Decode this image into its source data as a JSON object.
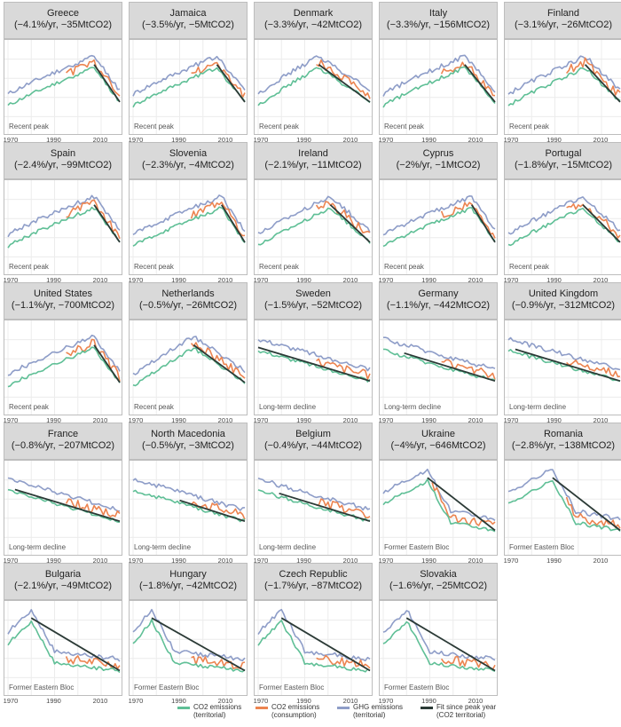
{
  "colors": {
    "co2_territorial": "#5fbf96",
    "co2_consumption": "#ec8450",
    "ghg_territorial": "#8e9dc8",
    "fit": "#2b3a36",
    "gridline": "#ececec",
    "strip_bg": "#d9d9d9"
  },
  "x_ticks": [
    "1970",
    "1990",
    "2010"
  ],
  "legend": [
    {
      "line1": "CO2 emissions",
      "line2": "(territorial)",
      "color": "#5fbf96"
    },
    {
      "line1": "CO2 emissions",
      "line2": "(consumption)",
      "color": "#ec8450"
    },
    {
      "line1": "GHG emissions",
      "line2": "(territorial)",
      "color": "#8e9dc8"
    },
    {
      "line1": "Fit since peak year",
      "line2": "(CO2 territorial)",
      "color": "#2b3a36"
    }
  ],
  "chart_data": {
    "type": "line",
    "xlim": [
      1970,
      2018
    ],
    "xticks": [
      1970,
      1990,
      2010
    ],
    "ylabel": "",
    "series_names": [
      "CO2 emissions (territorial)",
      "CO2 emissions (consumption)",
      "GHG emissions (territorial)",
      "Fit since peak year (CO2 territorial)"
    ],
    "panels": [
      {
        "country": "Greece",
        "subtitle": "(−4.1%/yr, −35MtCO2)",
        "category": "Recent peak",
        "shape": "peak",
        "peak_year": 2007,
        "cons_start": 1995
      },
      {
        "country": "Jamaica",
        "subtitle": "(−3.5%/yr, −5MtCO2)",
        "category": "Recent peak",
        "shape": "peak",
        "peak_year": 2006,
        "cons_start": 1995
      },
      {
        "country": "Denmark",
        "subtitle": "(−3.3%/yr, −42MtCO2)",
        "category": "Recent peak",
        "shape": "peak",
        "peak_year": 1996,
        "cons_start": 1995
      },
      {
        "country": "Italy",
        "subtitle": "(−3.3%/yr, −156MtCO2)",
        "category": "Recent peak",
        "shape": "peak",
        "peak_year": 2005,
        "cons_start": 1995
      },
      {
        "country": "Finland",
        "subtitle": "(−3.1%/yr, −26MtCO2)",
        "category": "Recent peak",
        "shape": "peak",
        "peak_year": 2003,
        "cons_start": 1995
      },
      {
        "country": "Spain",
        "subtitle": "(−2.4%/yr, −99MtCO2)",
        "category": "Recent peak",
        "shape": "peak",
        "peak_year": 2007,
        "cons_start": 1995
      },
      {
        "country": "Slovenia",
        "subtitle": "(−2.3%/yr, −4MtCO2)",
        "category": "Recent peak",
        "shape": "peak",
        "peak_year": 2008,
        "cons_start": 1995
      },
      {
        "country": "Ireland",
        "subtitle": "(−2.1%/yr, −11MtCO2)",
        "category": "Recent peak",
        "shape": "peak",
        "peak_year": 2001,
        "cons_start": 1995
      },
      {
        "country": "Cyprus",
        "subtitle": "(−2%/yr, −1MtCO2)",
        "category": "Recent peak",
        "shape": "peak",
        "peak_year": 2008,
        "cons_start": 1995
      },
      {
        "country": "Portugal",
        "subtitle": "(−1.8%/yr, −15MtCO2)",
        "category": "Recent peak",
        "shape": "peak",
        "peak_year": 2002,
        "cons_start": 1995
      },
      {
        "country": "United States",
        "subtitle": "(−1.1%/yr, −700MtCO2)",
        "category": "Recent peak",
        "shape": "peak",
        "peak_year": 2007,
        "cons_start": 1995
      },
      {
        "country": "Netherlands",
        "subtitle": "(−0.5%/yr, −26MtCO2)",
        "category": "Recent peak",
        "shape": "peak",
        "peak_year": 1996,
        "cons_start": 1995
      },
      {
        "country": "Sweden",
        "subtitle": "(−1.5%/yr, −52MtCO2)",
        "category": "Long-term decline",
        "shape": "decline",
        "peak_year": 1970,
        "cons_start": 1995
      },
      {
        "country": "Germany",
        "subtitle": "(−1.1%/yr, −442MtCO2)",
        "category": "Long-term decline",
        "shape": "decline",
        "peak_year": 1979,
        "cons_start": 1995
      },
      {
        "country": "United Kingdom",
        "subtitle": "(−0.9%/yr, −312MtCO2)",
        "category": "Long-term decline",
        "shape": "decline",
        "peak_year": 1973,
        "cons_start": 1995
      },
      {
        "country": "France",
        "subtitle": "(−0.8%/yr, −207MtCO2)",
        "category": "Long-term decline",
        "shape": "decline",
        "peak_year": 1973,
        "cons_start": 1995
      },
      {
        "country": "North Macedonia",
        "subtitle": "(−0.5%/yr, −3MtCO2)",
        "category": "Long-term decline",
        "shape": "decline",
        "peak_year": 1990,
        "cons_start": 1995
      },
      {
        "country": "Belgium",
        "subtitle": "(−0.4%/yr, −44MtCO2)",
        "category": "Long-term decline",
        "shape": "decline",
        "peak_year": 1979,
        "cons_start": 1995
      },
      {
        "country": "Ukraine",
        "subtitle": "(−4%/yr, −646MtCO2)",
        "category": "Former Eastern Bloc",
        "shape": "eastern",
        "peak_year": 1989,
        "cons_start": 1991
      },
      {
        "country": "Romania",
        "subtitle": "(−2.8%/yr, −138MtCO2)",
        "category": "Former Eastern Bloc",
        "shape": "eastern",
        "peak_year": 1989,
        "cons_start": 1995
      },
      {
        "country": "Bulgaria",
        "subtitle": "(−2.1%/yr, −49MtCO2)",
        "category": "Former Eastern Bloc",
        "shape": "eastern",
        "peak_year": 1980,
        "cons_start": 1995
      },
      {
        "country": "Hungary",
        "subtitle": "(−1.8%/yr, −42MtCO2)",
        "category": "Former Eastern Bloc",
        "shape": "eastern",
        "peak_year": 1978,
        "cons_start": 1995
      },
      {
        "country": "Czech Republic",
        "subtitle": "(−1.7%/yr, −87MtCO2)",
        "category": "Former Eastern Bloc",
        "shape": "eastern",
        "peak_year": 1980,
        "cons_start": 1995
      },
      {
        "country": "Slovakia",
        "subtitle": "(−1.6%/yr, −25MtCO2)",
        "category": "Former Eastern Bloc",
        "shape": "eastern",
        "peak_year": 1980,
        "cons_start": 1995
      }
    ]
  }
}
